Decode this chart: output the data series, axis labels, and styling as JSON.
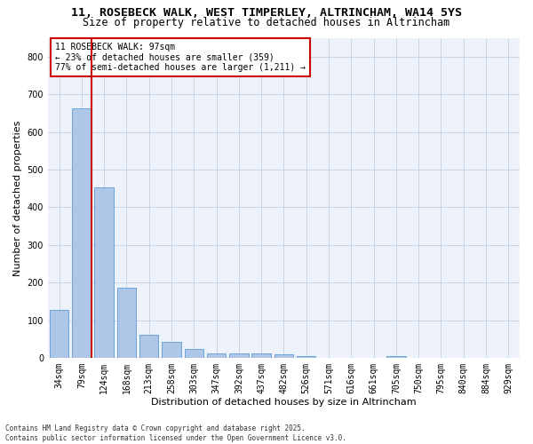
{
  "title": "11, ROSEBECK WALK, WEST TIMPERLEY, ALTRINCHAM, WA14 5YS",
  "subtitle": "Size of property relative to detached houses in Altrincham",
  "xlabel": "Distribution of detached houses by size in Altrincham",
  "ylabel": "Number of detached properties",
  "categories": [
    "34sqm",
    "79sqm",
    "124sqm",
    "168sqm",
    "213sqm",
    "258sqm",
    "303sqm",
    "347sqm",
    "392sqm",
    "437sqm",
    "482sqm",
    "526sqm",
    "571sqm",
    "616sqm",
    "661sqm",
    "705sqm",
    "750sqm",
    "795sqm",
    "840sqm",
    "884sqm",
    "929sqm"
  ],
  "values": [
    128,
    662,
    452,
    187,
    62,
    42,
    25,
    12,
    13,
    12,
    9,
    5,
    0,
    0,
    0,
    6,
    0,
    0,
    0,
    0,
    0
  ],
  "bar_color": "#aec6e8",
  "bar_edge_color": "#5b9bd5",
  "grid_color": "#c8d4e8",
  "background_color": "#eef2fa",
  "vline_color": "#cc0000",
  "vline_x": 1.425,
  "annotation_text": "11 ROSEBECK WALK: 97sqm\n← 23% of detached houses are smaller (359)\n77% of semi-detached houses are larger (1,211) →",
  "annotation_box_color": "#cc0000",
  "ylim": [
    0,
    850
  ],
  "yticks": [
    0,
    100,
    200,
    300,
    400,
    500,
    600,
    700,
    800
  ],
  "footer": "Contains HM Land Registry data © Crown copyright and database right 2025.\nContains public sector information licensed under the Open Government Licence v3.0.",
  "title_fontsize": 9.5,
  "subtitle_fontsize": 8.5,
  "tick_fontsize": 7,
  "ylabel_fontsize": 8,
  "xlabel_fontsize": 8,
  "annotation_fontsize": 7,
  "footer_fontsize": 5.5
}
